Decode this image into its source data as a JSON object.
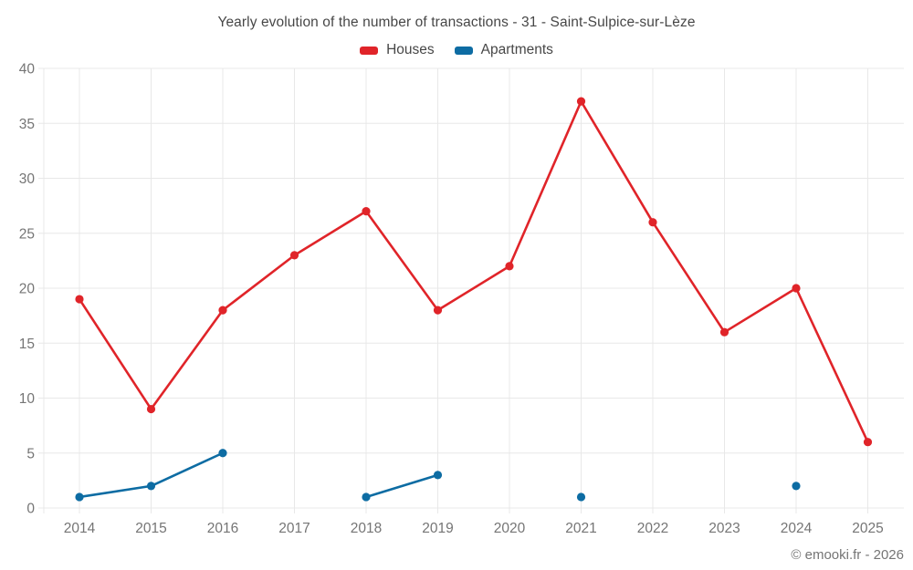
{
  "chart_data": {
    "type": "line",
    "title": "Yearly evolution of the number of transactions - 31 - Saint-Sulpice-sur-Lèze",
    "x": [
      "2014",
      "2015",
      "2016",
      "2017",
      "2018",
      "2019",
      "2020",
      "2021",
      "2022",
      "2023",
      "2024",
      "2025"
    ],
    "series": [
      {
        "name": "Houses",
        "color": "#e02429",
        "values": [
          19,
          9,
          18,
          23,
          27,
          18,
          22,
          37,
          26,
          16,
          20,
          6
        ]
      },
      {
        "name": "Apartments",
        "color": "#0d6ca3",
        "values": [
          1,
          2,
          5,
          null,
          1,
          3,
          null,
          1,
          null,
          null,
          2,
          null
        ]
      }
    ],
    "ylim": [
      0,
      40
    ],
    "ytick_step": 5,
    "ytick_labels": [
      "0",
      "5",
      "10",
      "15",
      "20",
      "25",
      "30",
      "35",
      "40"
    ],
    "grid": true,
    "legend_position": "top",
    "xlabel": "",
    "ylabel": ""
  },
  "colors": {
    "grid": "#e8e8e8",
    "axis_text": "#757575",
    "title_text": "#474747"
  },
  "footer": {
    "copyright": "© emooki.fr - 2026"
  }
}
